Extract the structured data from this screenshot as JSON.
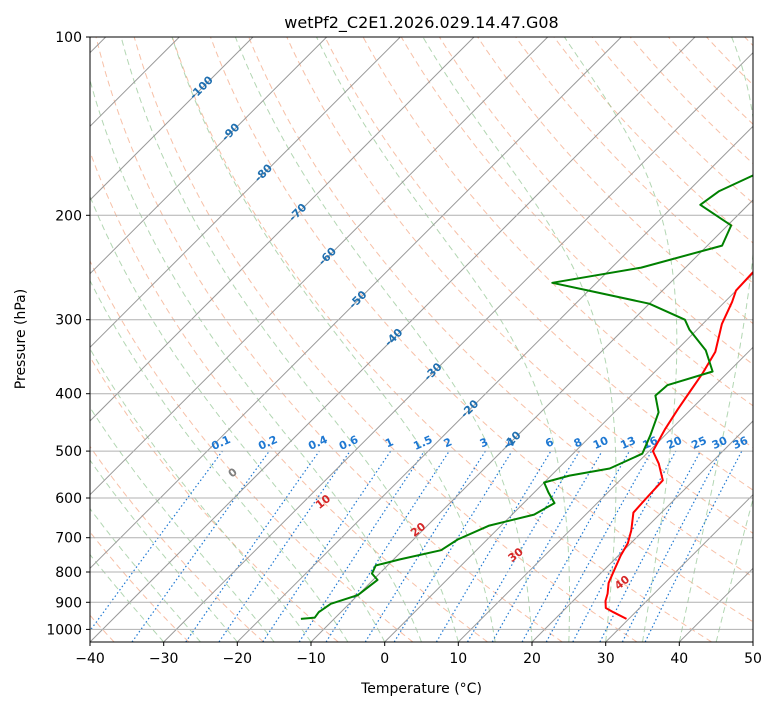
{
  "chart_data": {
    "type": "line",
    "subtype": "skew-T log-P diagram",
    "title": "wetPf2_C2E1.2026.029.14.47.G08",
    "xlabel": "Temperature (°C)",
    "ylabel": "Pressure (hPa)",
    "xlim": [
      -40,
      50
    ],
    "ylim": [
      1050,
      100
    ],
    "y_scale": "log",
    "grid": true,
    "x_ticks": [
      "−40",
      "−30",
      "−20",
      "−10",
      "0",
      "10",
      "20",
      "30",
      "40",
      "50"
    ],
    "x_tick_values": [
      -40,
      -30,
      -20,
      -10,
      0,
      10,
      20,
      30,
      40,
      50
    ],
    "y_ticks": [
      "100",
      "200",
      "300",
      "400",
      "500",
      "600",
      "700",
      "800",
      "900",
      "1000"
    ],
    "y_tick_values": [
      100,
      200,
      300,
      400,
      500,
      600,
      700,
      800,
      900,
      1000
    ],
    "colors": {
      "temperature": "#ff0000",
      "dewpoint": "#008000",
      "isotherms": "#999999",
      "dry_adiabats": "#f4a582",
      "moist_adiabats": "#92c592",
      "mixing_ratio": "#1e78d2",
      "isotherm_labels": "#1f6fb0",
      "theta_labels": "#d62728",
      "zero_theta_label": "#808080"
    },
    "series": [
      {
        "key": "temperature",
        "points": [
          [
            29.7,
            960
          ],
          [
            27.0,
            935
          ],
          [
            25.4,
            920
          ],
          [
            24.4,
            895
          ],
          [
            23.7,
            870
          ],
          [
            22.4,
            835
          ],
          [
            21.3,
            790
          ],
          [
            20.3,
            750
          ],
          [
            19.6,
            715
          ],
          [
            18.3,
            680
          ],
          [
            16.2,
            635
          ],
          [
            16.0,
            600
          ],
          [
            15.8,
            560
          ],
          [
            13.0,
            525
          ],
          [
            10.5,
            500
          ],
          [
            9.2,
            460
          ],
          [
            8.2,
            425
          ],
          [
            7.4,
            395
          ],
          [
            6.7,
            370
          ],
          [
            5.5,
            340
          ],
          [
            2.6,
            305
          ],
          [
            1.0,
            280
          ],
          [
            0.0,
            268
          ],
          [
            -0.2,
            250
          ],
          [
            0.0,
            220
          ],
          [
            1.0,
            200
          ],
          [
            2.5,
            185
          ],
          [
            3.0,
            165
          ],
          [
            2.6,
            145
          ],
          [
            2.6,
            130
          ],
          [
            3.0,
            115
          ],
          [
            3.2,
            100
          ]
        ]
      },
      {
        "key": "dewpoint",
        "points": [
          [
            -14.5,
            960
          ],
          [
            -12.8,
            955
          ],
          [
            -13.0,
            935
          ],
          [
            -12.5,
            905
          ],
          [
            -10.0,
            875
          ],
          [
            -9.4,
            825
          ],
          [
            -11.0,
            805
          ],
          [
            -11.6,
            780
          ],
          [
            -9.2,
            762
          ],
          [
            -4.8,
            735
          ],
          [
            -4.0,
            705
          ],
          [
            -1.6,
            668
          ],
          [
            3.0,
            640
          ],
          [
            4.2,
            612
          ],
          [
            2.0,
            588
          ],
          [
            0.0,
            565
          ],
          [
            2.5,
            550
          ],
          [
            7.0,
            535
          ],
          [
            9.4,
            505
          ],
          [
            8.0,
            470
          ],
          [
            6.0,
            430
          ],
          [
            3.3,
            403
          ],
          [
            3.5,
            387
          ],
          [
            7.8,
            367
          ],
          [
            4.0,
            338
          ],
          [
            -1.0,
            312
          ],
          [
            -3.0,
            300
          ],
          [
            -10.0,
            282
          ],
          [
            -20.0,
            268
          ],
          [
            -26.0,
            260
          ],
          [
            -16.0,
            245
          ],
          [
            -8.0,
            225
          ],
          [
            -9.5,
            208
          ],
          [
            -16.5,
            192
          ],
          [
            -15.8,
            182
          ],
          [
            -13.5,
            172
          ],
          [
            -10.5,
            160
          ],
          [
            -10.0,
            145
          ],
          [
            -10.0,
            130
          ],
          [
            -7.0,
            115
          ],
          [
            -5.0,
            100
          ]
        ]
      }
    ],
    "isotherm_labels": [
      "-100",
      "-90",
      "-80",
      "-70",
      "-60",
      "-50",
      "-40",
      "-30",
      "-20",
      "-10"
    ],
    "isotherm_label_values": [
      -100,
      -90,
      -80,
      -70,
      -60,
      -50,
      -40,
      -30,
      -20,
      -10
    ],
    "mixing_ratio_labels": [
      "0.1",
      "0.2",
      "0.4",
      "0.6",
      "1",
      "1.5",
      "2",
      "3",
      "4",
      "6",
      "8",
      "10",
      "13",
      "16",
      "20",
      "25",
      "30",
      "36"
    ],
    "mixing_ratio_values": [
      0.1,
      0.2,
      0.4,
      0.6,
      1,
      1.5,
      2,
      3,
      4,
      6,
      8,
      10,
      13,
      16,
      20,
      25,
      30,
      36
    ],
    "theta_labels": [
      "0",
      "10",
      "20",
      "30",
      "40"
    ],
    "theta_label_values": [
      0,
      10,
      20,
      30,
      40
    ]
  }
}
